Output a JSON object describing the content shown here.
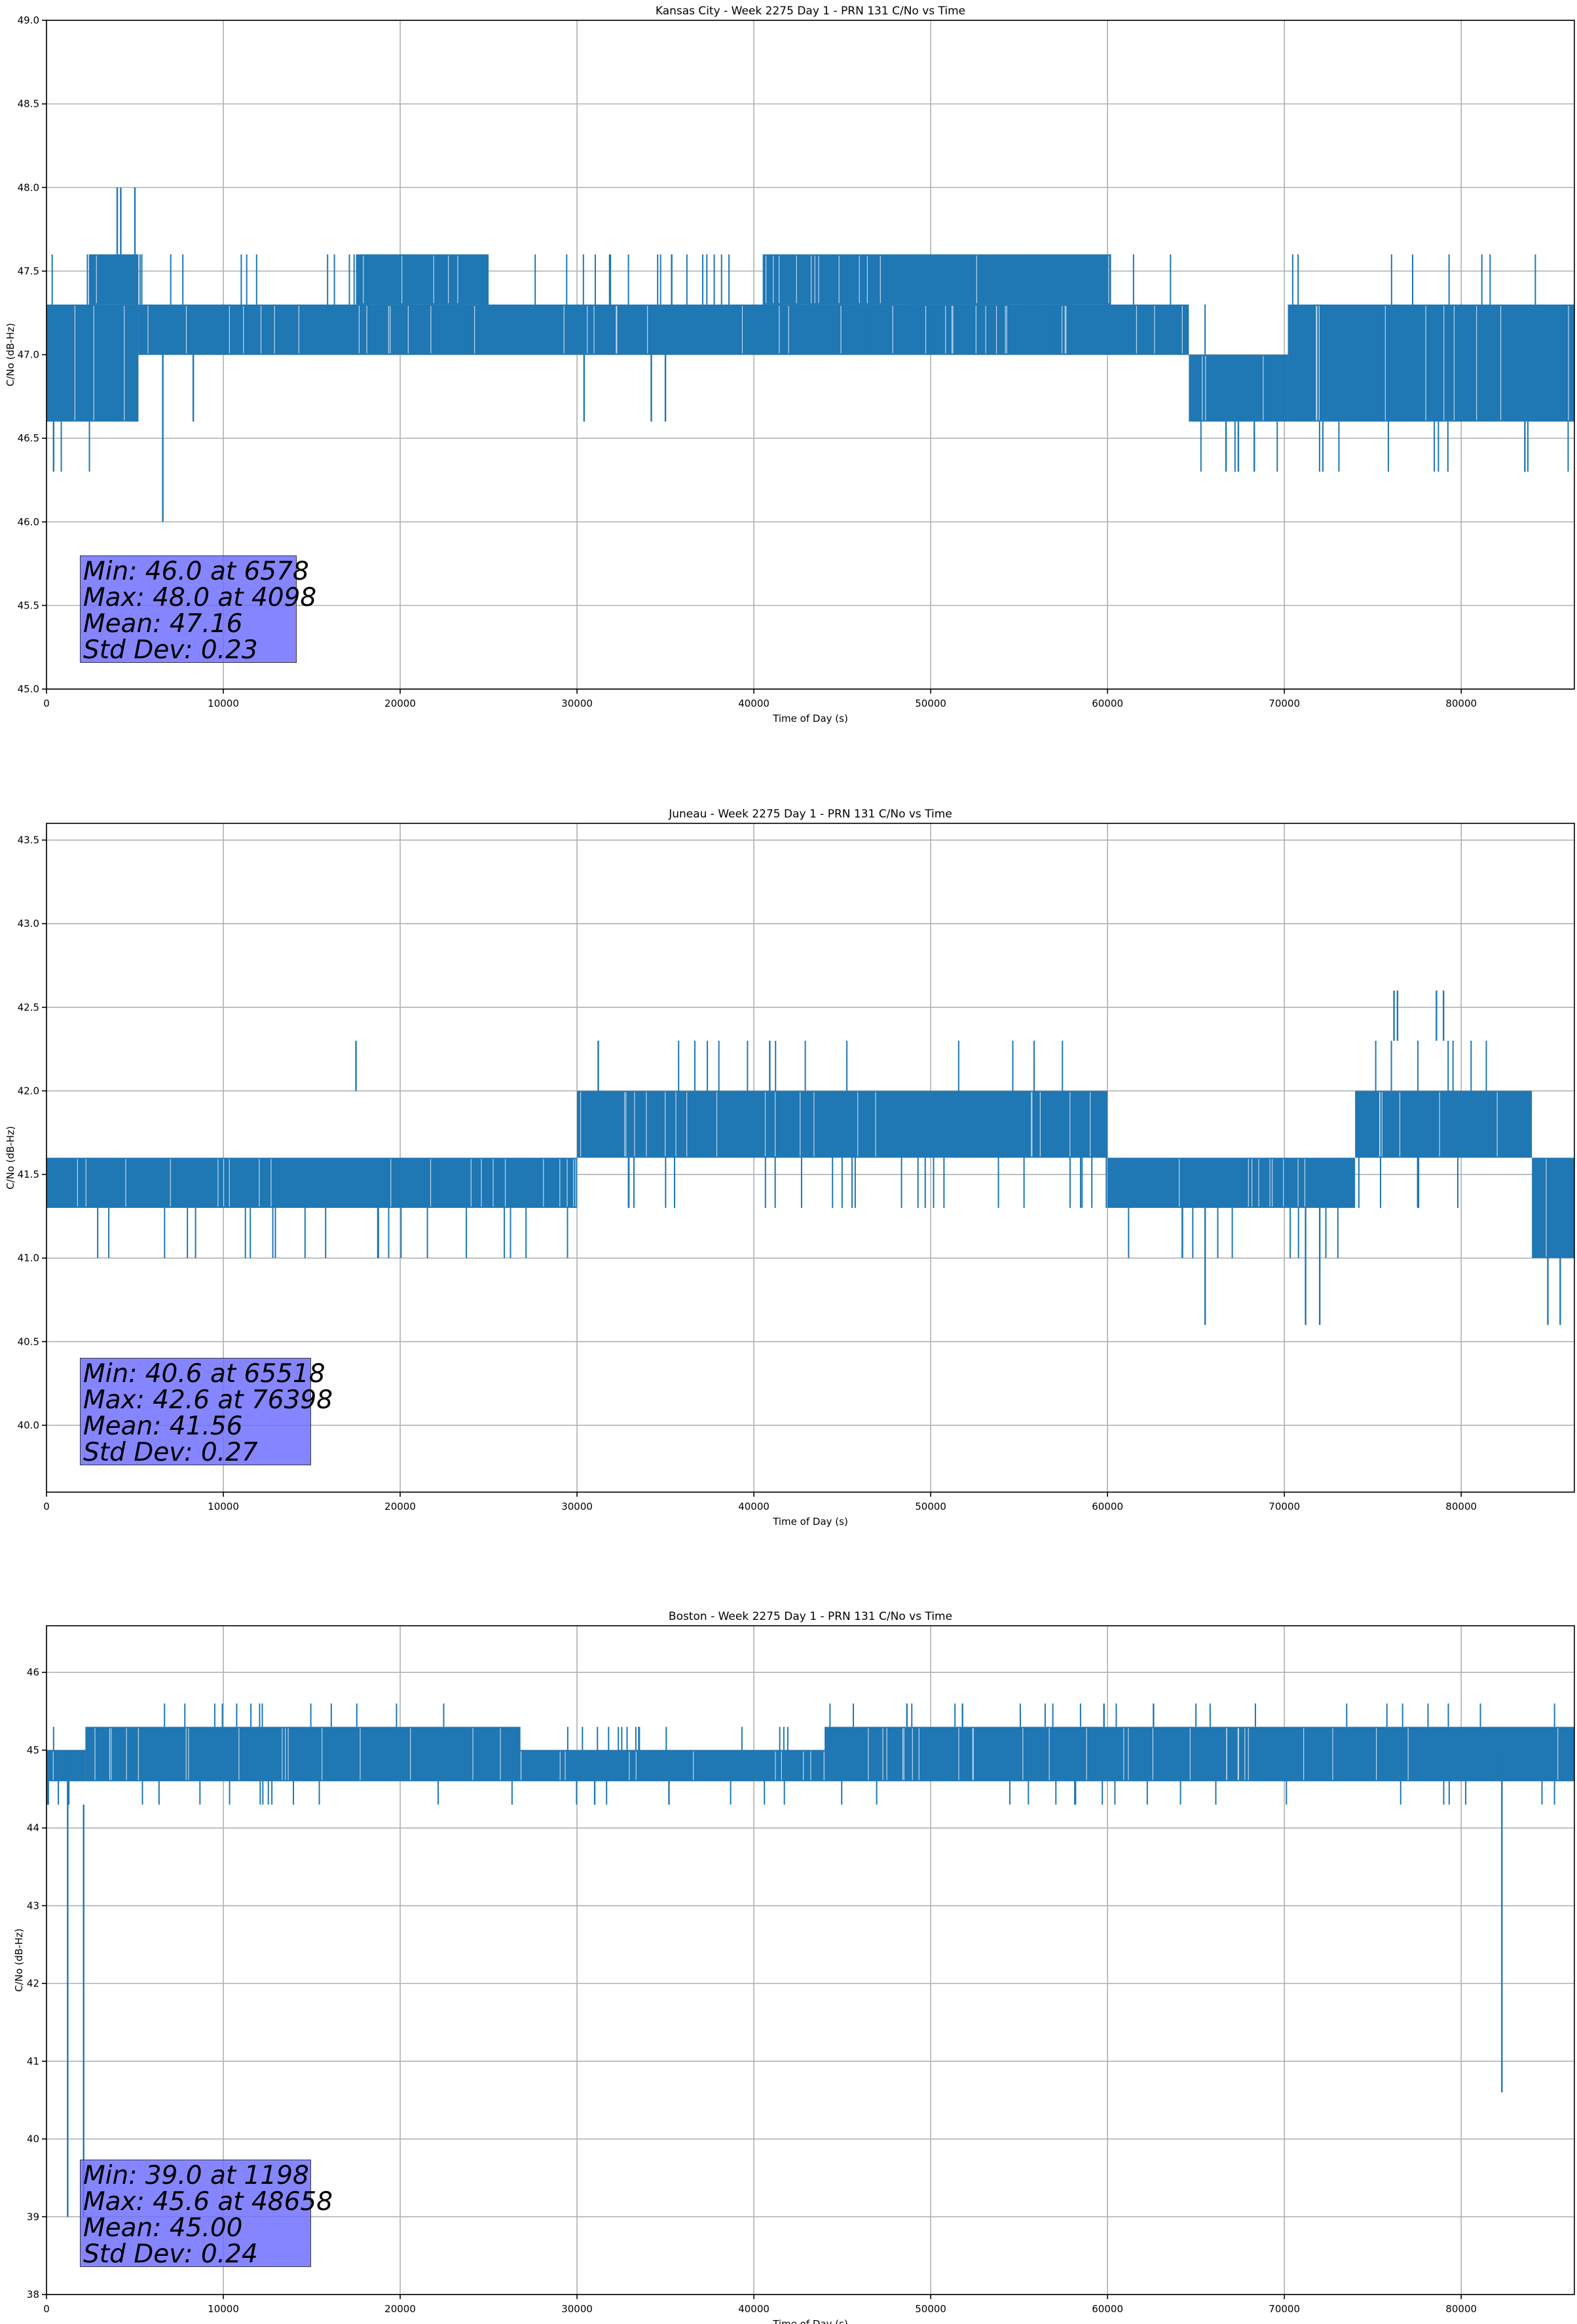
{
  "chart_data": [
    {
      "type": "line",
      "title": "Kansas City - Week 2275 Day 1 - PRN 131 C/No vs Time",
      "xlabel": "Time of Day (s)",
      "ylabel": "C/No (dB-Hz)",
      "xlim": [
        0,
        86400
      ],
      "ylim": [
        45.0,
        49.0
      ],
      "xticks": [
        0,
        10000,
        20000,
        30000,
        40000,
        50000,
        60000,
        70000,
        80000
      ],
      "yticks": [
        45.0,
        45.5,
        46.0,
        46.5,
        47.0,
        47.5,
        48.0,
        48.5,
        49.0
      ],
      "ytick_decimals": 1,
      "grid": true,
      "line_color": "#1f77b4",
      "series": [
        {
          "values_quantized": [
            46.6,
            46.3,
            46.6,
            47.0,
            47.3,
            47.6,
            48.0,
            46.0,
            46.6,
            47.3,
            47.6,
            46.3
          ],
          "bands": [
            {
              "x": [
                0,
                5200
              ],
              "lo": 46.6,
              "hi": 47.3
            },
            {
              "x": [
                2400,
                5200
              ],
              "lo": 47.3,
              "hi": 47.6
            },
            {
              "x": [
                5200,
                64600
              ],
              "lo": 47.0,
              "hi": 47.3
            },
            {
              "x": [
                17500,
                25000
              ],
              "lo": 47.3,
              "hi": 47.6
            },
            {
              "x": [
                40500,
                60200
              ],
              "lo": 47.3,
              "hi": 47.6
            },
            {
              "x": [
                64600,
                70200
              ],
              "lo": 46.6,
              "hi": 47.0
            },
            {
              "x": [
                70200,
                86400
              ],
              "lo": 46.6,
              "hi": 47.3
            }
          ],
          "spikes": [
            {
              "x": 400,
              "lo": 46.3,
              "hi": 47.0
            },
            {
              "x": 4000,
              "lo": 47.6,
              "hi": 48.0
            },
            {
              "x": 4200,
              "lo": 47.6,
              "hi": 48.0
            },
            {
              "x": 5000,
              "lo": 47.6,
              "hi": 48.0
            },
            {
              "x": 6578,
              "lo": 46.0,
              "hi": 47.0
            },
            {
              "x": 8300,
              "lo": 46.6,
              "hi": 47.0
            },
            {
              "x": 30400,
              "lo": 46.6,
              "hi": 47.0
            },
            {
              "x": 34200,
              "lo": 46.6,
              "hi": 47.0
            },
            {
              "x": 35000,
              "lo": 46.6,
              "hi": 47.0
            },
            {
              "x": 66700,
              "lo": 46.3,
              "hi": 46.6
            },
            {
              "x": 67400,
              "lo": 46.3,
              "hi": 46.6
            },
            {
              "x": 68300,
              "lo": 46.3,
              "hi": 46.6
            },
            {
              "x": 83600,
              "lo": 46.3,
              "hi": 46.6
            }
          ]
        }
      ],
      "annotation": [
        "Min: 46.0 at 6578",
        "Max: 48.0 at 4098",
        "Mean: 47.16",
        "Std Dev: 0.23"
      ]
    },
    {
      "type": "line",
      "title": "Juneau - Week 2275 Day 1 - PRN 131 C/No vs Time",
      "xlabel": "Time of Day (s)",
      "ylabel": "C/No (dB-Hz)",
      "xlim": [
        0,
        86400
      ],
      "ylim": [
        39.6,
        43.6
      ],
      "xticks": [
        0,
        10000,
        20000,
        30000,
        40000,
        50000,
        60000,
        70000,
        80000
      ],
      "yticks": [
        40.0,
        40.5,
        41.0,
        41.5,
        42.0,
        42.5,
        43.0,
        43.5
      ],
      "ytick_decimals": 1,
      "grid": true,
      "line_color": "#1f77b4",
      "series": [
        {
          "values_quantized": [
            40.6,
            41.0,
            41.3,
            41.6,
            42.0,
            42.3,
            42.6
          ],
          "bands": [
            {
              "x": [
                0,
                30000
              ],
              "lo": 41.3,
              "hi": 41.6
            },
            {
              "x": [
                30000,
                60000
              ],
              "lo": 41.6,
              "hi": 42.0
            },
            {
              "x": [
                60000,
                74000
              ],
              "lo": 41.3,
              "hi": 41.6
            },
            {
              "x": [
                74000,
                84000
              ],
              "lo": 41.6,
              "hi": 42.0
            },
            {
              "x": [
                84000,
                86400
              ],
              "lo": 41.0,
              "hi": 41.6
            }
          ],
          "spikes": [
            {
              "x": 17500,
              "lo": 42.0,
              "hi": 42.3
            },
            {
              "x": 31200,
              "lo": 42.0,
              "hi": 42.3
            },
            {
              "x": 40900,
              "lo": 42.0,
              "hi": 42.3
            },
            {
              "x": 65518,
              "lo": 40.6,
              "hi": 41.3
            },
            {
              "x": 71200,
              "lo": 40.6,
              "hi": 41.3
            },
            {
              "x": 72000,
              "lo": 40.6,
              "hi": 41.3
            },
            {
              "x": 76200,
              "lo": 42.3,
              "hi": 42.6
            },
            {
              "x": 76398,
              "lo": 42.3,
              "hi": 42.6
            },
            {
              "x": 78600,
              "lo": 42.3,
              "hi": 42.6
            },
            {
              "x": 79000,
              "lo": 42.3,
              "hi": 42.6
            },
            {
              "x": 84900,
              "lo": 40.6,
              "hi": 41.3
            },
            {
              "x": 85600,
              "lo": 40.6,
              "hi": 41.3
            }
          ]
        }
      ],
      "annotation": [
        "Min: 40.6 at 65518",
        "Max: 42.6 at 76398",
        "Mean: 41.56",
        "Std Dev: 0.27"
      ]
    },
    {
      "type": "line",
      "title": "Boston - Week 2275 Day 1 - PRN 131 C/No vs Time",
      "xlabel": "Time of Day (s)",
      "ylabel": "C/No (dB-Hz)",
      "xlim": [
        0,
        86400
      ],
      "ylim": [
        38.0,
        46.6
      ],
      "xticks": [
        0,
        10000,
        20000,
        30000,
        40000,
        50000,
        60000,
        70000,
        80000
      ],
      "yticks": [
        38,
        39,
        40,
        41,
        42,
        43,
        44,
        45,
        46
      ],
      "ytick_decimals": 0,
      "grid": true,
      "line_color": "#1f77b4",
      "series": [
        {
          "values_quantized": [
            39.0,
            40.6,
            44.3,
            44.6,
            45.0,
            45.3,
            45.6
          ],
          "bands": [
            {
              "x": [
                0,
                2200
              ],
              "lo": 44.6,
              "hi": 45.0
            },
            {
              "x": [
                2200,
                26800
              ],
              "lo": 44.6,
              "hi": 45.3
            },
            {
              "x": [
                26800,
                44000
              ],
              "lo": 44.6,
              "hi": 45.0
            },
            {
              "x": [
                44000,
                86400
              ],
              "lo": 44.6,
              "hi": 45.3
            }
          ],
          "spikes": [
            {
              "x": 100,
              "lo": 44.3,
              "hi": 44.6
            },
            {
              "x": 1198,
              "lo": 39.0,
              "hi": 45.0
            },
            {
              "x": 2100,
              "lo": 39.0,
              "hi": 44.3
            },
            {
              "x": 31000,
              "lo": 44.3,
              "hi": 44.6
            },
            {
              "x": 35200,
              "lo": 44.3,
              "hi": 44.6
            },
            {
              "x": 48658,
              "lo": 45.3,
              "hi": 45.6
            },
            {
              "x": 51800,
              "lo": 45.3,
              "hi": 45.6
            },
            {
              "x": 59800,
              "lo": 45.3,
              "hi": 45.6
            },
            {
              "x": 62600,
              "lo": 45.3,
              "hi": 45.6
            },
            {
              "x": 82300,
              "lo": 40.6,
              "hi": 45.0
            }
          ]
        }
      ],
      "annotation": [
        "Min: 39.0 at 1198",
        "Max: 45.6 at 48658",
        "Mean: 45.00",
        "Std Dev: 0.24"
      ]
    }
  ]
}
